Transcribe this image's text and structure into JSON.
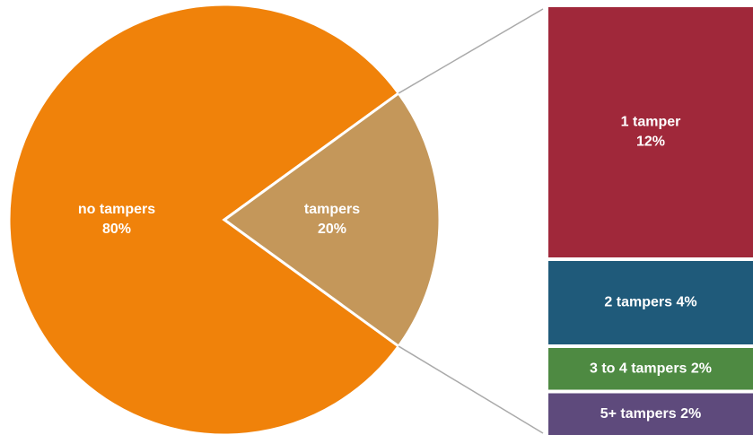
{
  "chart_data": [
    {
      "type": "pie",
      "categories": [
        "no tampers",
        "tampers"
      ],
      "values": [
        80,
        20
      ],
      "value_labels": [
        "80%",
        "20%"
      ],
      "colors": [
        "#f0820a",
        "#c4975a"
      ]
    },
    {
      "type": "bar",
      "stacked": true,
      "categories": [
        "1 tamper",
        "2 tampers",
        "3 to 4 tampers",
        "5+ tampers"
      ],
      "values": [
        12,
        4,
        2,
        2
      ],
      "value_labels": [
        "12%",
        "4%",
        "2%",
        "2%"
      ],
      "colors": [
        "#a0283a",
        "#1f5a7a",
        "#4e8a42",
        "#5e4a7c"
      ]
    }
  ]
}
